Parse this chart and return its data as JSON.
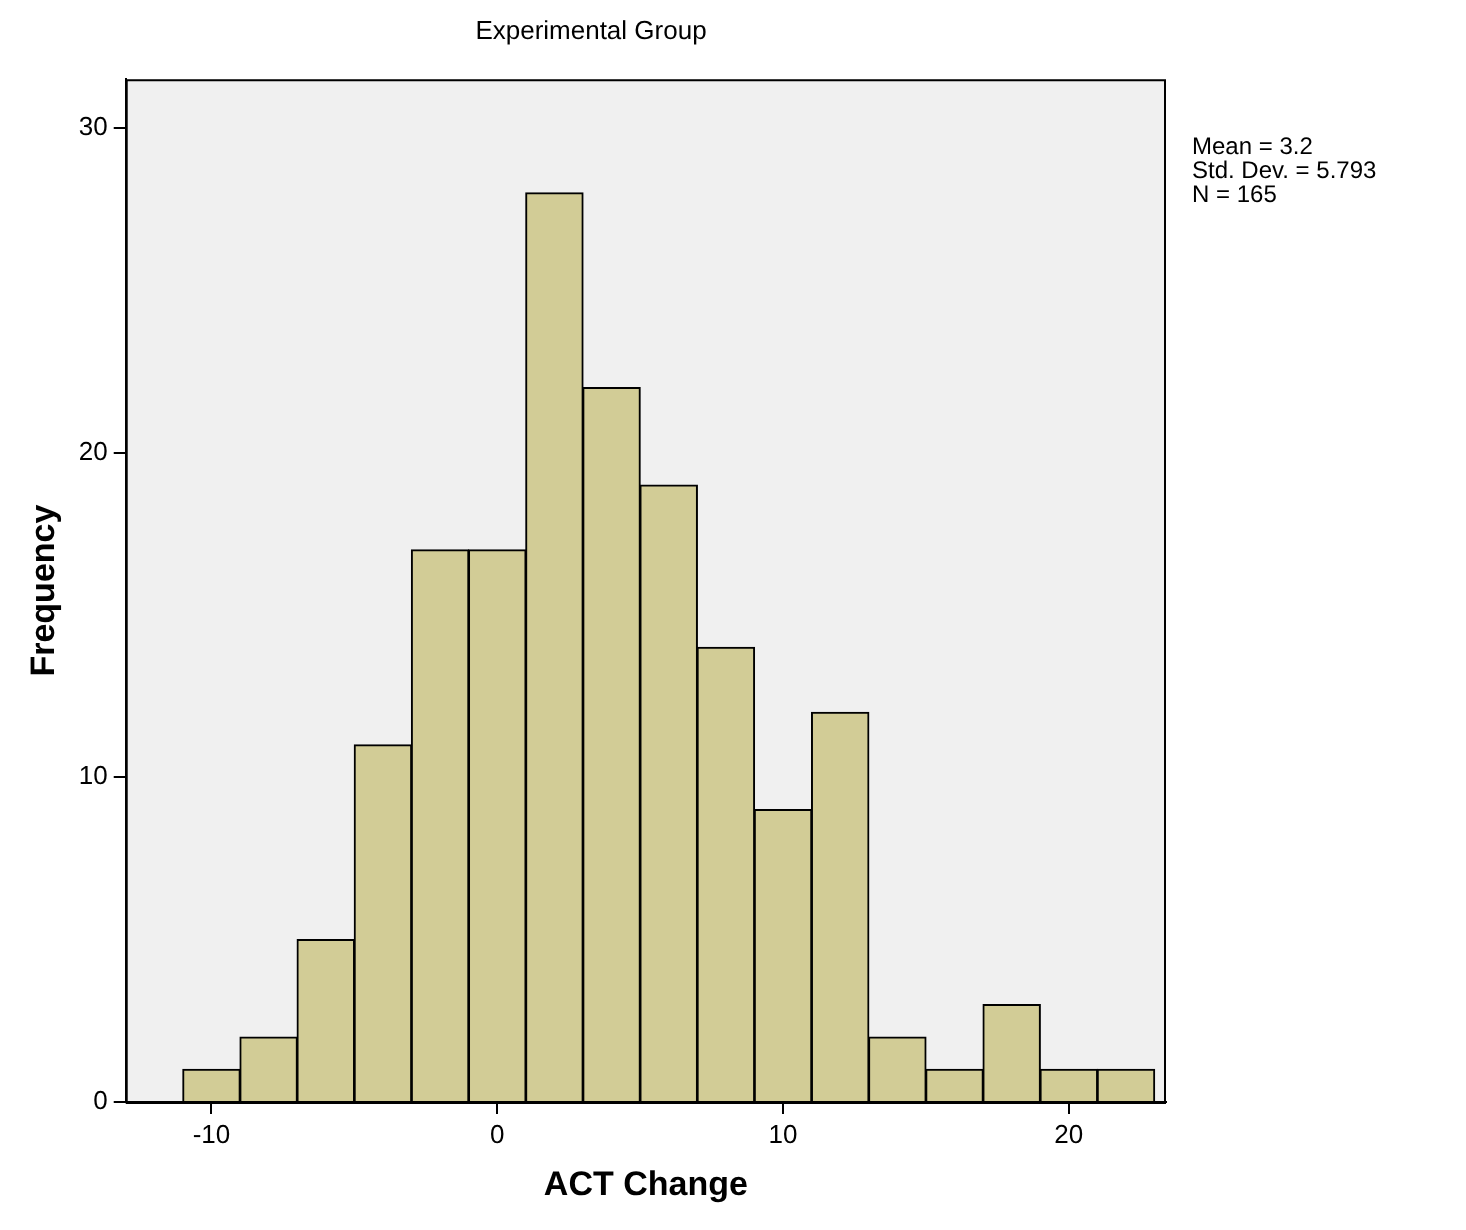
{
  "chart_data": {
    "type": "histogram",
    "title": "Experimental Group",
    "xlabel": "ACT Change",
    "ylabel": "Frequency",
    "bins": [
      -11,
      -9,
      -7,
      -5,
      -3,
      -1,
      1,
      3,
      5,
      7,
      9,
      11,
      13,
      15,
      17,
      19,
      21,
      23
    ],
    "values": [
      1,
      2,
      5,
      11,
      17,
      17,
      28,
      22,
      19,
      14,
      9,
      12,
      2,
      1,
      3,
      1,
      1
    ],
    "color": "#d2cc96",
    "xlim": [
      -13,
      23.4
    ],
    "xticks": [
      -10,
      0,
      10,
      20
    ],
    "ylim": [
      0,
      31.5
    ],
    "yticks": [
      0,
      10,
      20,
      30
    ],
    "grid": false,
    "legend": false,
    "annotations": [
      "Mean = 3.2",
      "Std. Dev. = 5.793",
      "N = 165"
    ]
  }
}
